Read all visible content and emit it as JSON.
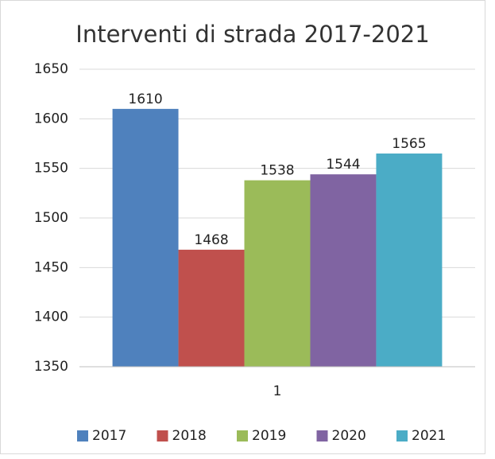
{
  "chart_data": {
    "type": "bar",
    "title": "Interventi di strada 2017-2021",
    "categories": [
      "1"
    ],
    "series": [
      {
        "name": "2017",
        "color": "#4f81bd",
        "values": [
          1610
        ]
      },
      {
        "name": "2018",
        "color": "#c0504d",
        "values": [
          1468
        ]
      },
      {
        "name": "2019",
        "color": "#9bbb59",
        "values": [
          1538
        ]
      },
      {
        "name": "2020",
        "color": "#8064a2",
        "values": [
          1544
        ]
      },
      {
        "name": "2021",
        "color": "#4bacc6",
        "values": [
          1565
        ]
      }
    ],
    "ylim": [
      1350,
      1650
    ],
    "yticks": [
      1350,
      1400,
      1450,
      1500,
      1550,
      1600,
      1650
    ],
    "grid": true,
    "legend": "bottom",
    "data_labels": true
  }
}
